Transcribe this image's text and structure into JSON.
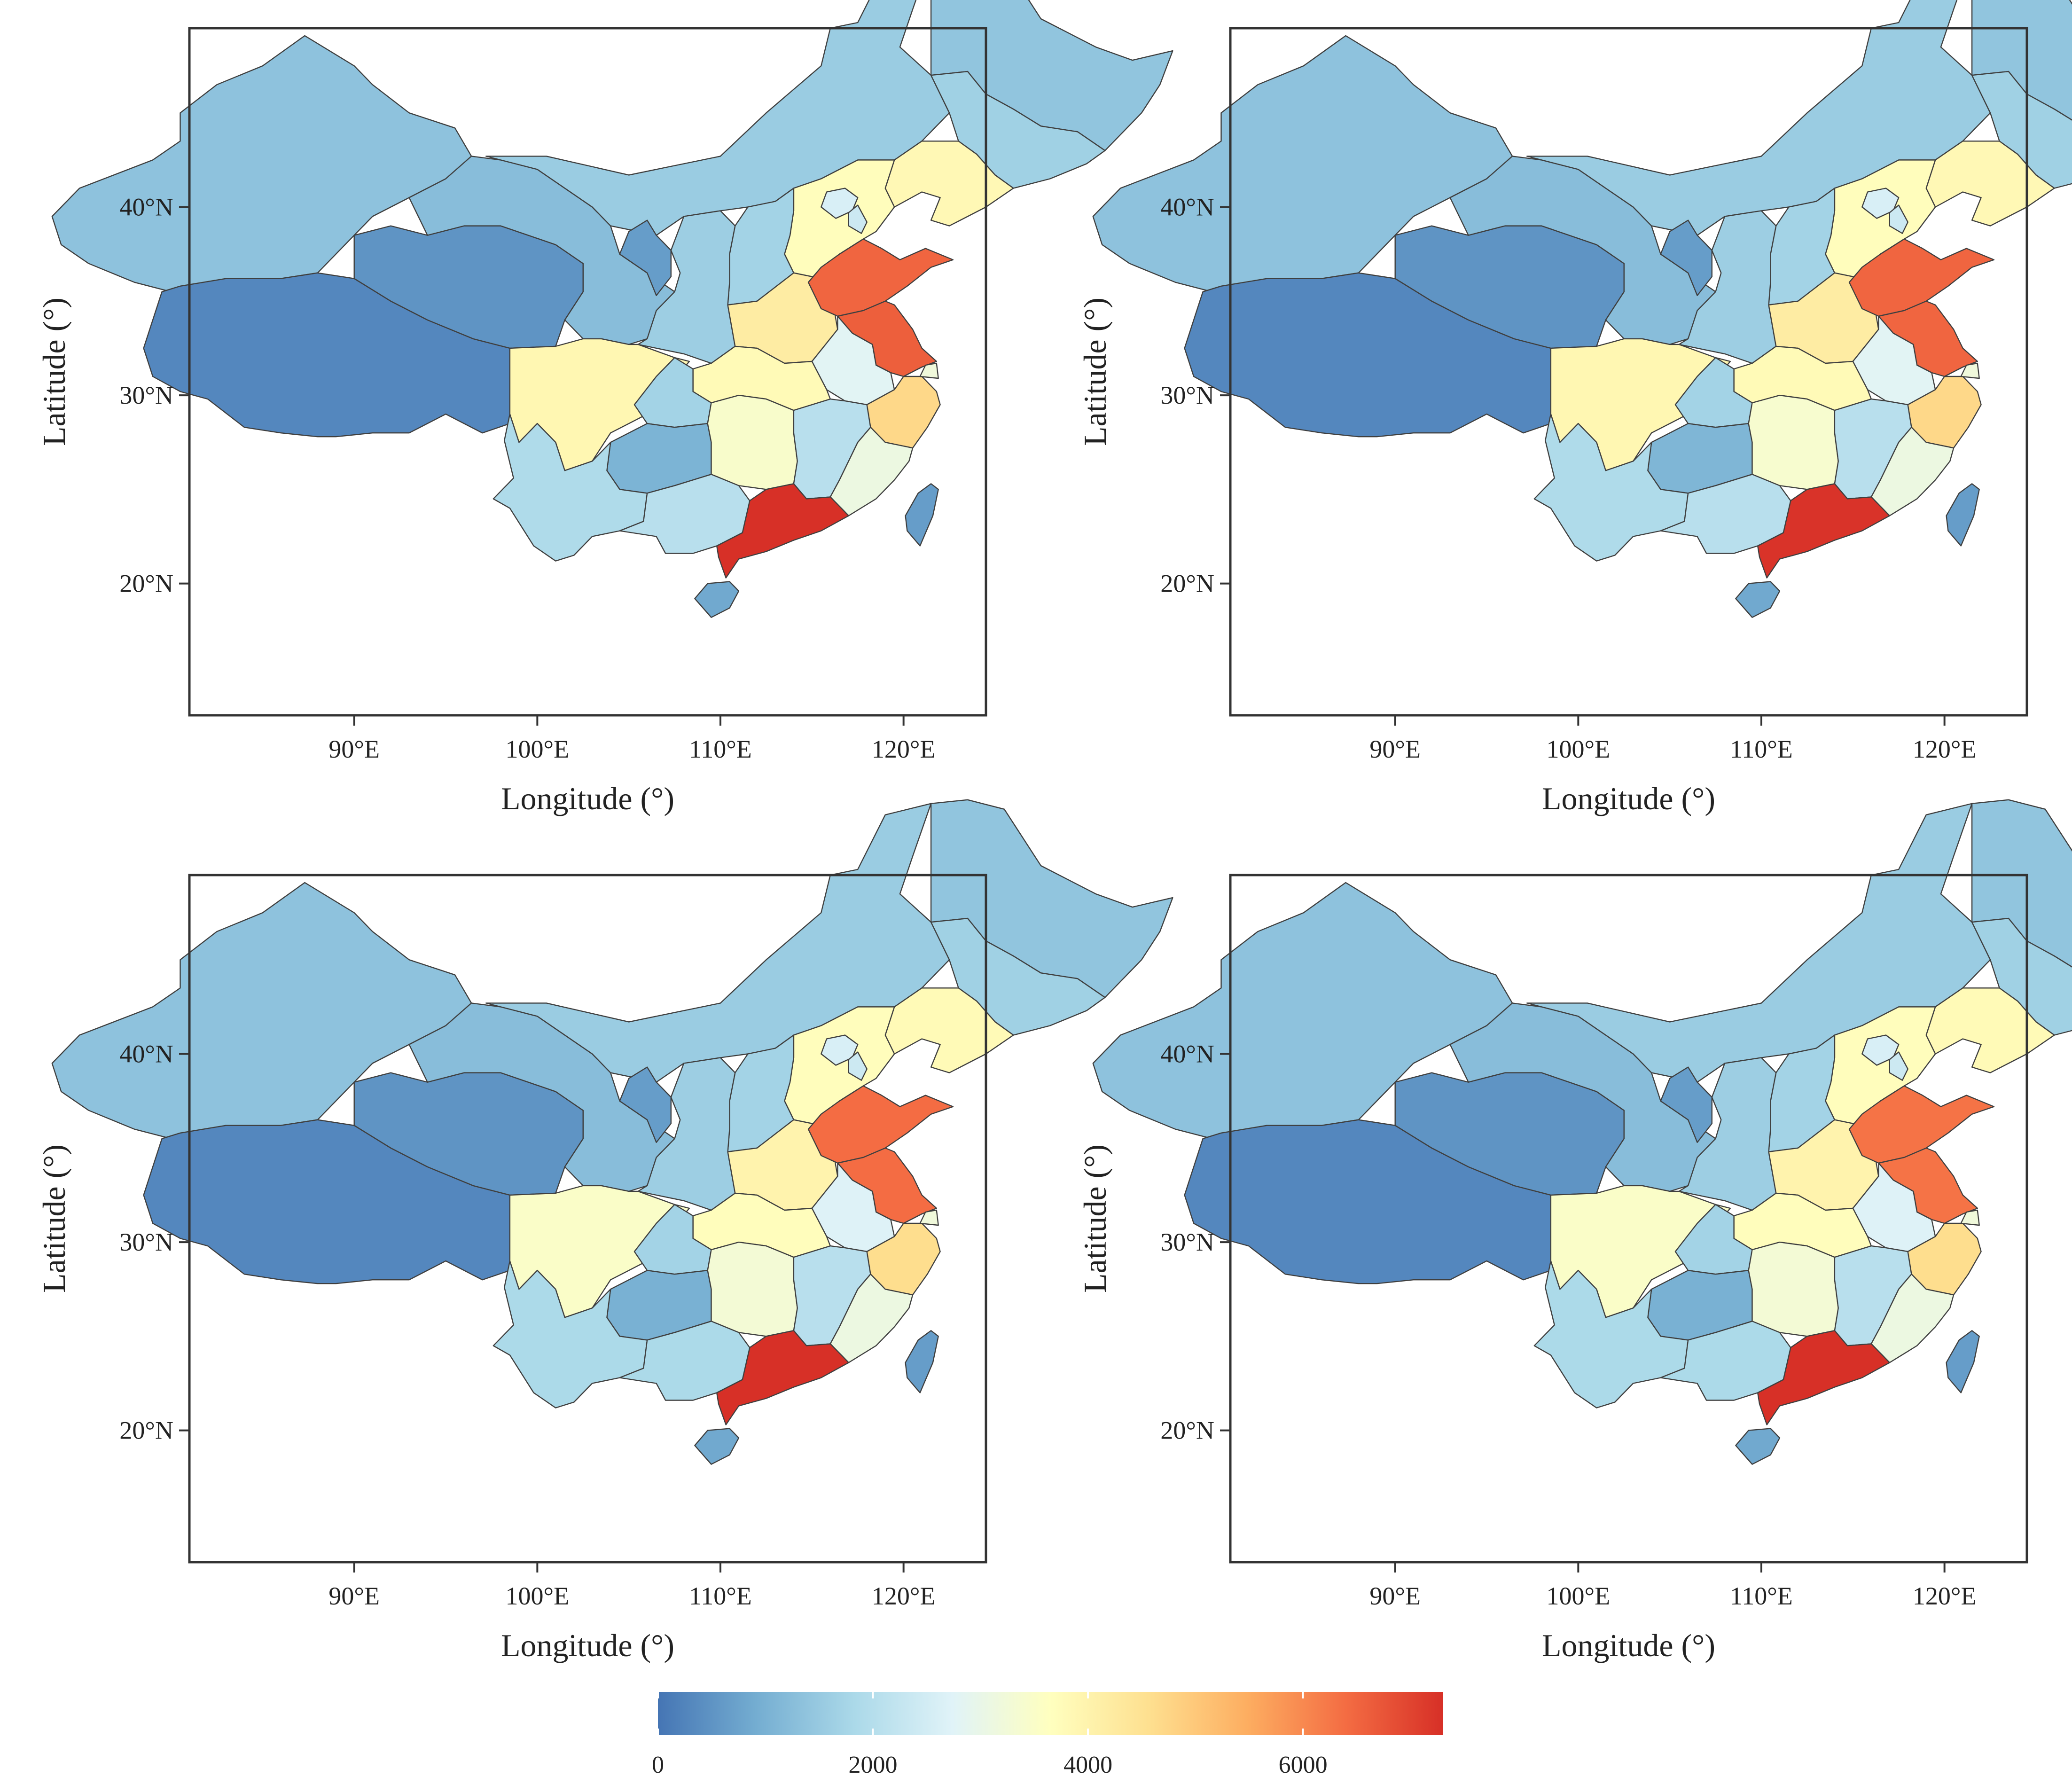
{
  "figure": {
    "panels": [
      {
        "xlabel": "Longitude (°)",
        "ylabel": "Latitude (°)",
        "xticks": [
          "90°E",
          "100°E",
          "110°E",
          "120°E"
        ],
        "yticks": [
          "20°N",
          "30°N",
          "40°N"
        ],
        "values": {
          "xinjiang": 1350,
          "tibet": 300,
          "qinghai": 500,
          "gansu": 1250,
          "sichuan": 3900,
          "yunnan": 1900,
          "inner_mongolia": 1550,
          "heilongjiang": 1400,
          "jilin": 1650,
          "liaoning": 3850,
          "hebei": 3700,
          "beijing": 2600,
          "tianjin": 2400,
          "shanxi": 1700,
          "shaanxi": 1600,
          "ningxia": 650,
          "henan": 4200,
          "shandong": 6500,
          "jiangsu": 6600,
          "anhui": 2800,
          "hubei": 3800,
          "chongqing": 1700,
          "guizhou": 1050,
          "hunan": 3450,
          "jiangxi": 2050,
          "zhejiang": 4700,
          "fujian": 3100,
          "guangdong": 7300,
          "guangxi": 2050,
          "hainan": 850,
          "taiwan": 650,
          "shanghai": 3200
        }
      },
      {
        "xlabel": "Longitude (°)",
        "ylabel": "Latitude (°)",
        "xticks": [
          "90°E",
          "100°E",
          "110°E",
          "120°E"
        ],
        "yticks": [
          "20°N",
          "30°N",
          "40°N"
        ],
        "values": {
          "xinjiang": 1350,
          "tibet": 300,
          "qinghai": 500,
          "gansu": 1250,
          "sichuan": 3900,
          "yunnan": 1900,
          "inner_mongolia": 1550,
          "heilongjiang": 1400,
          "jilin": 1650,
          "liaoning": 3850,
          "hebei": 3700,
          "beijing": 2600,
          "tianjin": 2400,
          "shanxi": 1700,
          "shaanxi": 1600,
          "ningxia": 650,
          "henan": 4200,
          "shandong": 6500,
          "jiangsu": 6500,
          "anhui": 2800,
          "hubei": 3800,
          "chongqing": 1700,
          "guizhou": 1100,
          "hunan": 3400,
          "jiangxi": 2050,
          "zhejiang": 4700,
          "fujian": 3100,
          "guangdong": 7250,
          "guangxi": 2050,
          "hainan": 850,
          "taiwan": 650,
          "shanghai": 3200
        }
      },
      {
        "xlabel": "Longitude (°)",
        "ylabel": "Latitude (°)",
        "xticks": [
          "90°E",
          "100°E",
          "110°E",
          "120°E"
        ],
        "yticks": [
          "20°N",
          "30°N",
          "40°N"
        ],
        "values": {
          "xinjiang": 1350,
          "tibet": 300,
          "qinghai": 500,
          "gansu": 1250,
          "sichuan": 3500,
          "yunnan": 1850,
          "inner_mongolia": 1550,
          "heilongjiang": 1400,
          "jilin": 1650,
          "liaoning": 3800,
          "hebei": 3700,
          "beijing": 2600,
          "tianjin": 2400,
          "shanxi": 1700,
          "shaanxi": 1600,
          "ningxia": 650,
          "henan": 4000,
          "shandong": 6400,
          "jiangsu": 6400,
          "anhui": 2700,
          "hubei": 3700,
          "chongqing": 1700,
          "guizhou": 1000,
          "hunan": 3300,
          "jiangxi": 2050,
          "zhejiang": 4600,
          "fujian": 3100,
          "guangdong": 7300,
          "guangxi": 1850,
          "hainan": 850,
          "taiwan": 650,
          "shanghai": 3200
        }
      },
      {
        "xlabel": "Longitude (°)",
        "ylabel": "Latitude (°)",
        "xticks": [
          "90°E",
          "100°E",
          "110°E",
          "120°E"
        ],
        "yticks": [
          "20°N",
          "30°N",
          "40°N"
        ],
        "values": {
          "xinjiang": 1350,
          "tibet": 300,
          "qinghai": 500,
          "gansu": 1250,
          "sichuan": 3500,
          "yunnan": 1850,
          "inner_mongolia": 1550,
          "heilongjiang": 1400,
          "jilin": 1650,
          "liaoning": 3800,
          "hebei": 3700,
          "beijing": 2600,
          "tianjin": 2400,
          "shanxi": 1700,
          "shaanxi": 1600,
          "ningxia": 650,
          "henan": 4000,
          "shandong": 6300,
          "jiangsu": 6300,
          "anhui": 2700,
          "hubei": 3700,
          "chongqing": 1700,
          "guizhou": 1000,
          "hunan": 3300,
          "jiangxi": 2050,
          "zhejiang": 4600,
          "fujian": 3100,
          "guangdong": 7300,
          "guangxi": 1850,
          "hainan": 850,
          "taiwan": 650,
          "shanghai": 3200
        }
      }
    ],
    "colorbar": {
      "vmin": 0,
      "vmax": 7300,
      "tick_values": [
        0,
        2000,
        4000,
        6000
      ],
      "tick_labels": [
        "0",
        "2000",
        "4000",
        "6000"
      ],
      "colors": [
        "#4575b4",
        "#74add1",
        "#abd9e9",
        "#e0f3f8",
        "#ffffbf",
        "#fee090",
        "#fdae61",
        "#f46d43",
        "#d73027"
      ]
    }
  }
}
